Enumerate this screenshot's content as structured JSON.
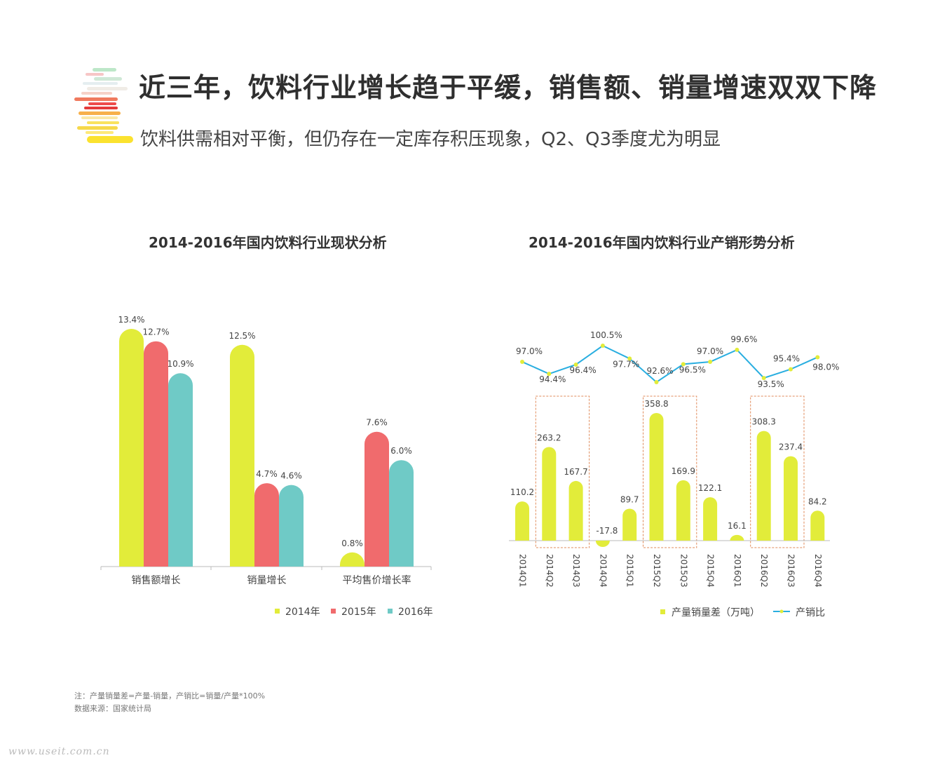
{
  "header": {
    "title": "近三年，饮料行业增长趋于平缓，销售额、销量增速双双下降",
    "subtitle": "饮料供需相对平衡，但仍存在一定库存积压现象，Q2、Q3季度尤为明显"
  },
  "colors": {
    "yellow": "#e2ec3a",
    "red": "#f06b6d",
    "teal": "#6fcac6",
    "line": "#29aee0",
    "box": "#e08a5a"
  },
  "chart_data": [
    {
      "type": "bar",
      "title": "2014-2016年国内饮料行业现状分析",
      "categories": [
        "销售额增长",
        "销量增长",
        "平均售价增长率"
      ],
      "series": [
        {
          "name": "2014年",
          "values": [
            13.4,
            12.5,
            0.8
          ],
          "labels": [
            "13.4%",
            "12.5%",
            "0.8%"
          ]
        },
        {
          "name": "2015年",
          "values": [
            12.7,
            4.7,
            7.6
          ],
          "labels": [
            "12.7%",
            "4.7%",
            "7.6%"
          ]
        },
        {
          "name": "2016年",
          "values": [
            10.9,
            4.6,
            6.0
          ],
          "labels": [
            "10.9%",
            "4.6%",
            "6.0%"
          ]
        }
      ],
      "ylim": [
        0,
        13.4
      ],
      "legend": "bottom"
    },
    {
      "type": "bar+line",
      "title": "2014-2016年国内饮料行业产销形势分析",
      "categories": [
        "2014Q1",
        "2014Q2",
        "2014Q3",
        "2014Q4",
        "2015Q1",
        "2015Q2",
        "2015Q3",
        "2015Q4",
        "2016Q1",
        "2016Q2",
        "2016Q3",
        "2016Q4"
      ],
      "bar_series": {
        "name": "产量销量差（万吨）",
        "values": [
          110.2,
          263.2,
          167.7,
          -17.8,
          89.7,
          358.8,
          169.9,
          122.1,
          16.1,
          308.3,
          237.4,
          84.2
        ],
        "labels": [
          "110.2",
          "263.2",
          "167.7",
          "-17.8",
          "89.7",
          "358.8",
          "169.9",
          "122.1",
          "16.1",
          "308.3",
          "237.4",
          "84.2"
        ]
      },
      "line_series": {
        "name": "产销比",
        "values": [
          97.0,
          94.4,
          96.4,
          100.5,
          97.7,
          92.6,
          96.5,
          97.0,
          99.6,
          93.5,
          95.4,
          98.0
        ],
        "labels": [
          "97.0%",
          "94.4%",
          "96.4%",
          "100.5%",
          "97.7%",
          "92.6%",
          "96.5%",
          "97.0%",
          "99.6%",
          "93.5%",
          "95.4%",
          "98.0%"
        ]
      },
      "highlight_groups": [
        [
          "2014Q2",
          "2014Q3"
        ],
        [
          "2015Q2",
          "2015Q3"
        ],
        [
          "2016Q2",
          "2016Q3"
        ]
      ],
      "legend": "bottom"
    }
  ],
  "notes": {
    "formula": "注：产量销量差=产量-销量，产销比=销量/产量*100%",
    "source": "数据来源：国家统计局"
  },
  "watermark": "www.useit.com.cn"
}
